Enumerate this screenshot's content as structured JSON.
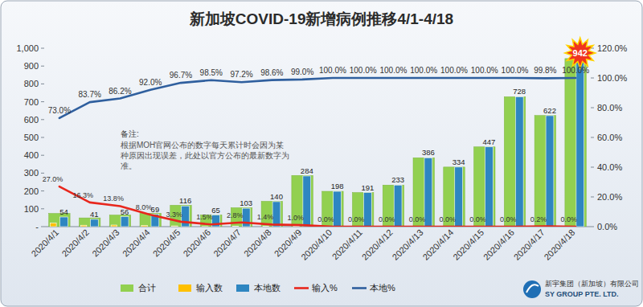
{
  "chart_data": {
    "type": "bar",
    "title": "新加坡COVID-19新增病例推移4/1-4/18",
    "annotations": [
      "备注:",
      "根据MOH官网公布的数字每天累计时会因为某种原因出现误差，此处以官方公布的最新数字为准。",
      "新宇集团（新加坡）有限公司",
      "SY GROUP PTE. LTD."
    ],
    "categories": [
      "2020/4/1",
      "2020/4/2",
      "2020/4/3",
      "2020/4/4",
      "2020/4/5",
      "2020/4/6",
      "2020/4/7",
      "2020/4/8",
      "2020/4/9",
      "2020/4/10",
      "2020/4/11",
      "2020/4/12",
      "2020/4/13",
      "2020/4/14",
      "2020/4/15",
      "2020/4/16",
      "2020/4/17",
      "2020/4/18"
    ],
    "series": [
      {
        "name": "合计",
        "type": "bar",
        "color": "#92d050",
        "data_labels": false,
        "values": [
          74,
          49,
          65,
          75,
          120,
          66,
          106,
          142,
          287,
          198,
          191,
          233,
          386,
          334,
          447,
          728,
          623,
          942
        ]
      },
      {
        "name": "输入数",
        "type": "bar",
        "color": "#ffc000",
        "data_labels": false,
        "values": [
          20,
          8,
          9,
          6,
          4,
          1,
          3,
          2,
          3,
          0,
          0,
          0,
          0,
          0,
          0,
          0,
          1,
          0
        ]
      },
      {
        "name": "本地数",
        "type": "bar",
        "color": "#2e86c1",
        "data_labels": true,
        "values": [
          54,
          41,
          56,
          69,
          116,
          65,
          103,
          140,
          284,
          198,
          191,
          233,
          386,
          334,
          447,
          728,
          622,
          942
        ]
      },
      {
        "name": "输入%",
        "type": "line",
        "axis": "y2",
        "color": "#e8261c",
        "data_labels": true,
        "values": [
          27.0,
          16.3,
          13.8,
          8.0,
          3.3,
          1.5,
          2.8,
          1.4,
          1.0,
          0,
          0,
          0,
          0,
          0,
          0,
          0,
          0.2,
          0
        ],
        "value_labels": [
          "27.0%",
          "16.3%",
          "13.8%",
          "8.0%",
          "3.3%",
          "1.5%",
          "2.8%",
          "1.4%",
          "1.0%",
          "0.0%",
          "0.0%",
          "0.0%",
          "0.0%",
          "0.0%",
          "0.0%",
          "0.0%",
          "0.2%",
          "0.0%"
        ]
      },
      {
        "name": "本地%",
        "type": "line",
        "axis": "y2",
        "color": "#2f5f9e",
        "data_labels": true,
        "values": [
          73.0,
          83.7,
          86.2,
          92.0,
          96.7,
          98.5,
          97.2,
          98.6,
          99.0,
          100,
          100,
          100,
          100,
          100,
          100,
          100,
          99.8,
          100
        ],
        "value_labels": [
          "73.0%",
          "83.7%",
          "86.2%",
          "92.0%",
          "96.7%",
          "98.5%",
          "97.2%",
          "98.6%",
          "99.0%",
          "100.0%",
          "100.0%",
          "100.0%",
          "100.0%",
          "100.0%",
          "100.0%",
          "100.0%",
          "99.8%",
          "100.0%"
        ]
      }
    ],
    "ylim": [
      0,
      1000
    ],
    "yticks": [
      {
        "value": 0,
        "label": "-"
      },
      100,
      200,
      300,
      400,
      500,
      600,
      700,
      800,
      900,
      {
        "value": 1000,
        "label": "1,000"
      }
    ],
    "y2lim": [
      0,
      120
    ],
    "y2ticks": [
      {
        "value": 0,
        "label": "0.0%"
      },
      {
        "value": 20,
        "label": "20.0%"
      },
      {
        "value": 40,
        "label": "40.0%"
      },
      {
        "value": 60,
        "label": "60.0%"
      },
      {
        "value": 80,
        "label": "80.0%"
      },
      {
        "value": 100,
        "label": "100.0%"
      },
      {
        "value": 120,
        "label": "120.0%"
      }
    ],
    "stacked": false,
    "grid": false,
    "legend": "bottom"
  }
}
